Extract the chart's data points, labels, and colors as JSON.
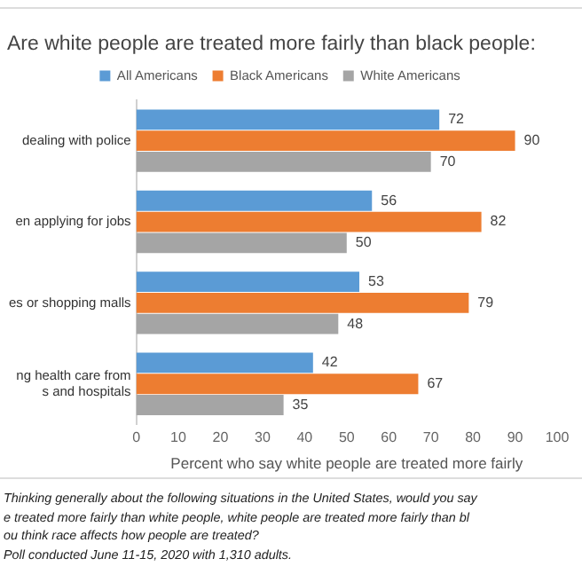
{
  "chart_data": {
    "type": "bar",
    "orientation": "horizontal",
    "title": "Are white people are treated more fairly than black people:",
    "categories": [
      "dealing with police",
      "en applying for jobs",
      "es or shopping malls",
      "ng health care from\ns and hospitals"
    ],
    "series": [
      {
        "name": "All Americans",
        "color": "#5b9bd5",
        "values": [
          72,
          56,
          53,
          42
        ]
      },
      {
        "name": "Black Americans",
        "color": "#ed7d31",
        "values": [
          90,
          82,
          79,
          67
        ]
      },
      {
        "name": "White Americans",
        "color": "#a5a5a5",
        "values": [
          70,
          50,
          48,
          35
        ]
      }
    ],
    "xlim": [
      0,
      100
    ],
    "xticks": [
      0,
      10,
      20,
      30,
      40,
      50,
      60,
      70,
      80,
      90,
      100
    ],
    "xlabel": "Percent who say white people are treated more fairly",
    "data_labels": true,
    "grid": false,
    "legend": "top",
    "annotations": [
      "Thinking generally about the following situations in the United States, would you say",
      "e treated more fairly than white people, white people are treated more fairly than bl",
      "ou think race affects how people are treated?",
      "Poll conducted June 11-15, 2020 with 1,310 adults."
    ]
  }
}
